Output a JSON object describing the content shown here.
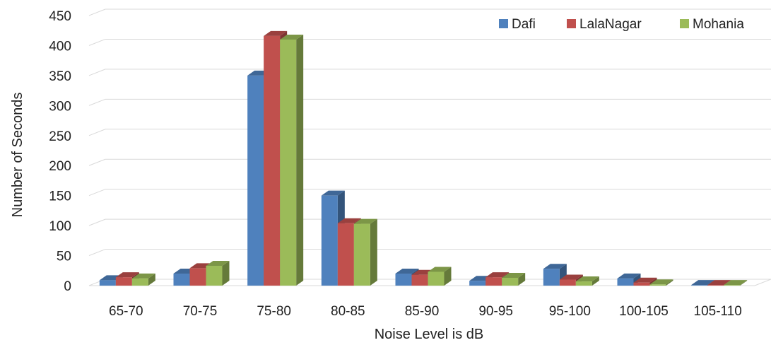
{
  "chart_data": {
    "type": "bar",
    "xlabel": "Noise Level is dB",
    "ylabel": "Number of Seconds",
    "ylim": [
      0,
      450
    ],
    "yticks": [
      "0",
      "50",
      "100",
      "150",
      "200",
      "250",
      "300",
      "350",
      "400",
      "450"
    ],
    "categories": [
      "65-70",
      "70-75",
      "75-80",
      "80-85",
      "85-90",
      "90-95",
      "95-100",
      "100-105",
      "105-110"
    ],
    "series": [
      {
        "name": "Dafi",
        "color": "#4F81BD",
        "values": [
          9,
          20,
          350,
          150,
          20,
          8,
          28,
          12,
          1
        ]
      },
      {
        "name": "LalaNagar",
        "color": "#C0504D",
        "values": [
          14,
          29,
          416,
          104,
          18,
          14,
          10,
          5,
          1
        ]
      },
      {
        "name": "Mohania",
        "color": "#9BBB59",
        "values": [
          12,
          33,
          410,
          103,
          23,
          13,
          7,
          2,
          1
        ]
      }
    ],
    "grid": true,
    "legend_position": "top-right"
  }
}
